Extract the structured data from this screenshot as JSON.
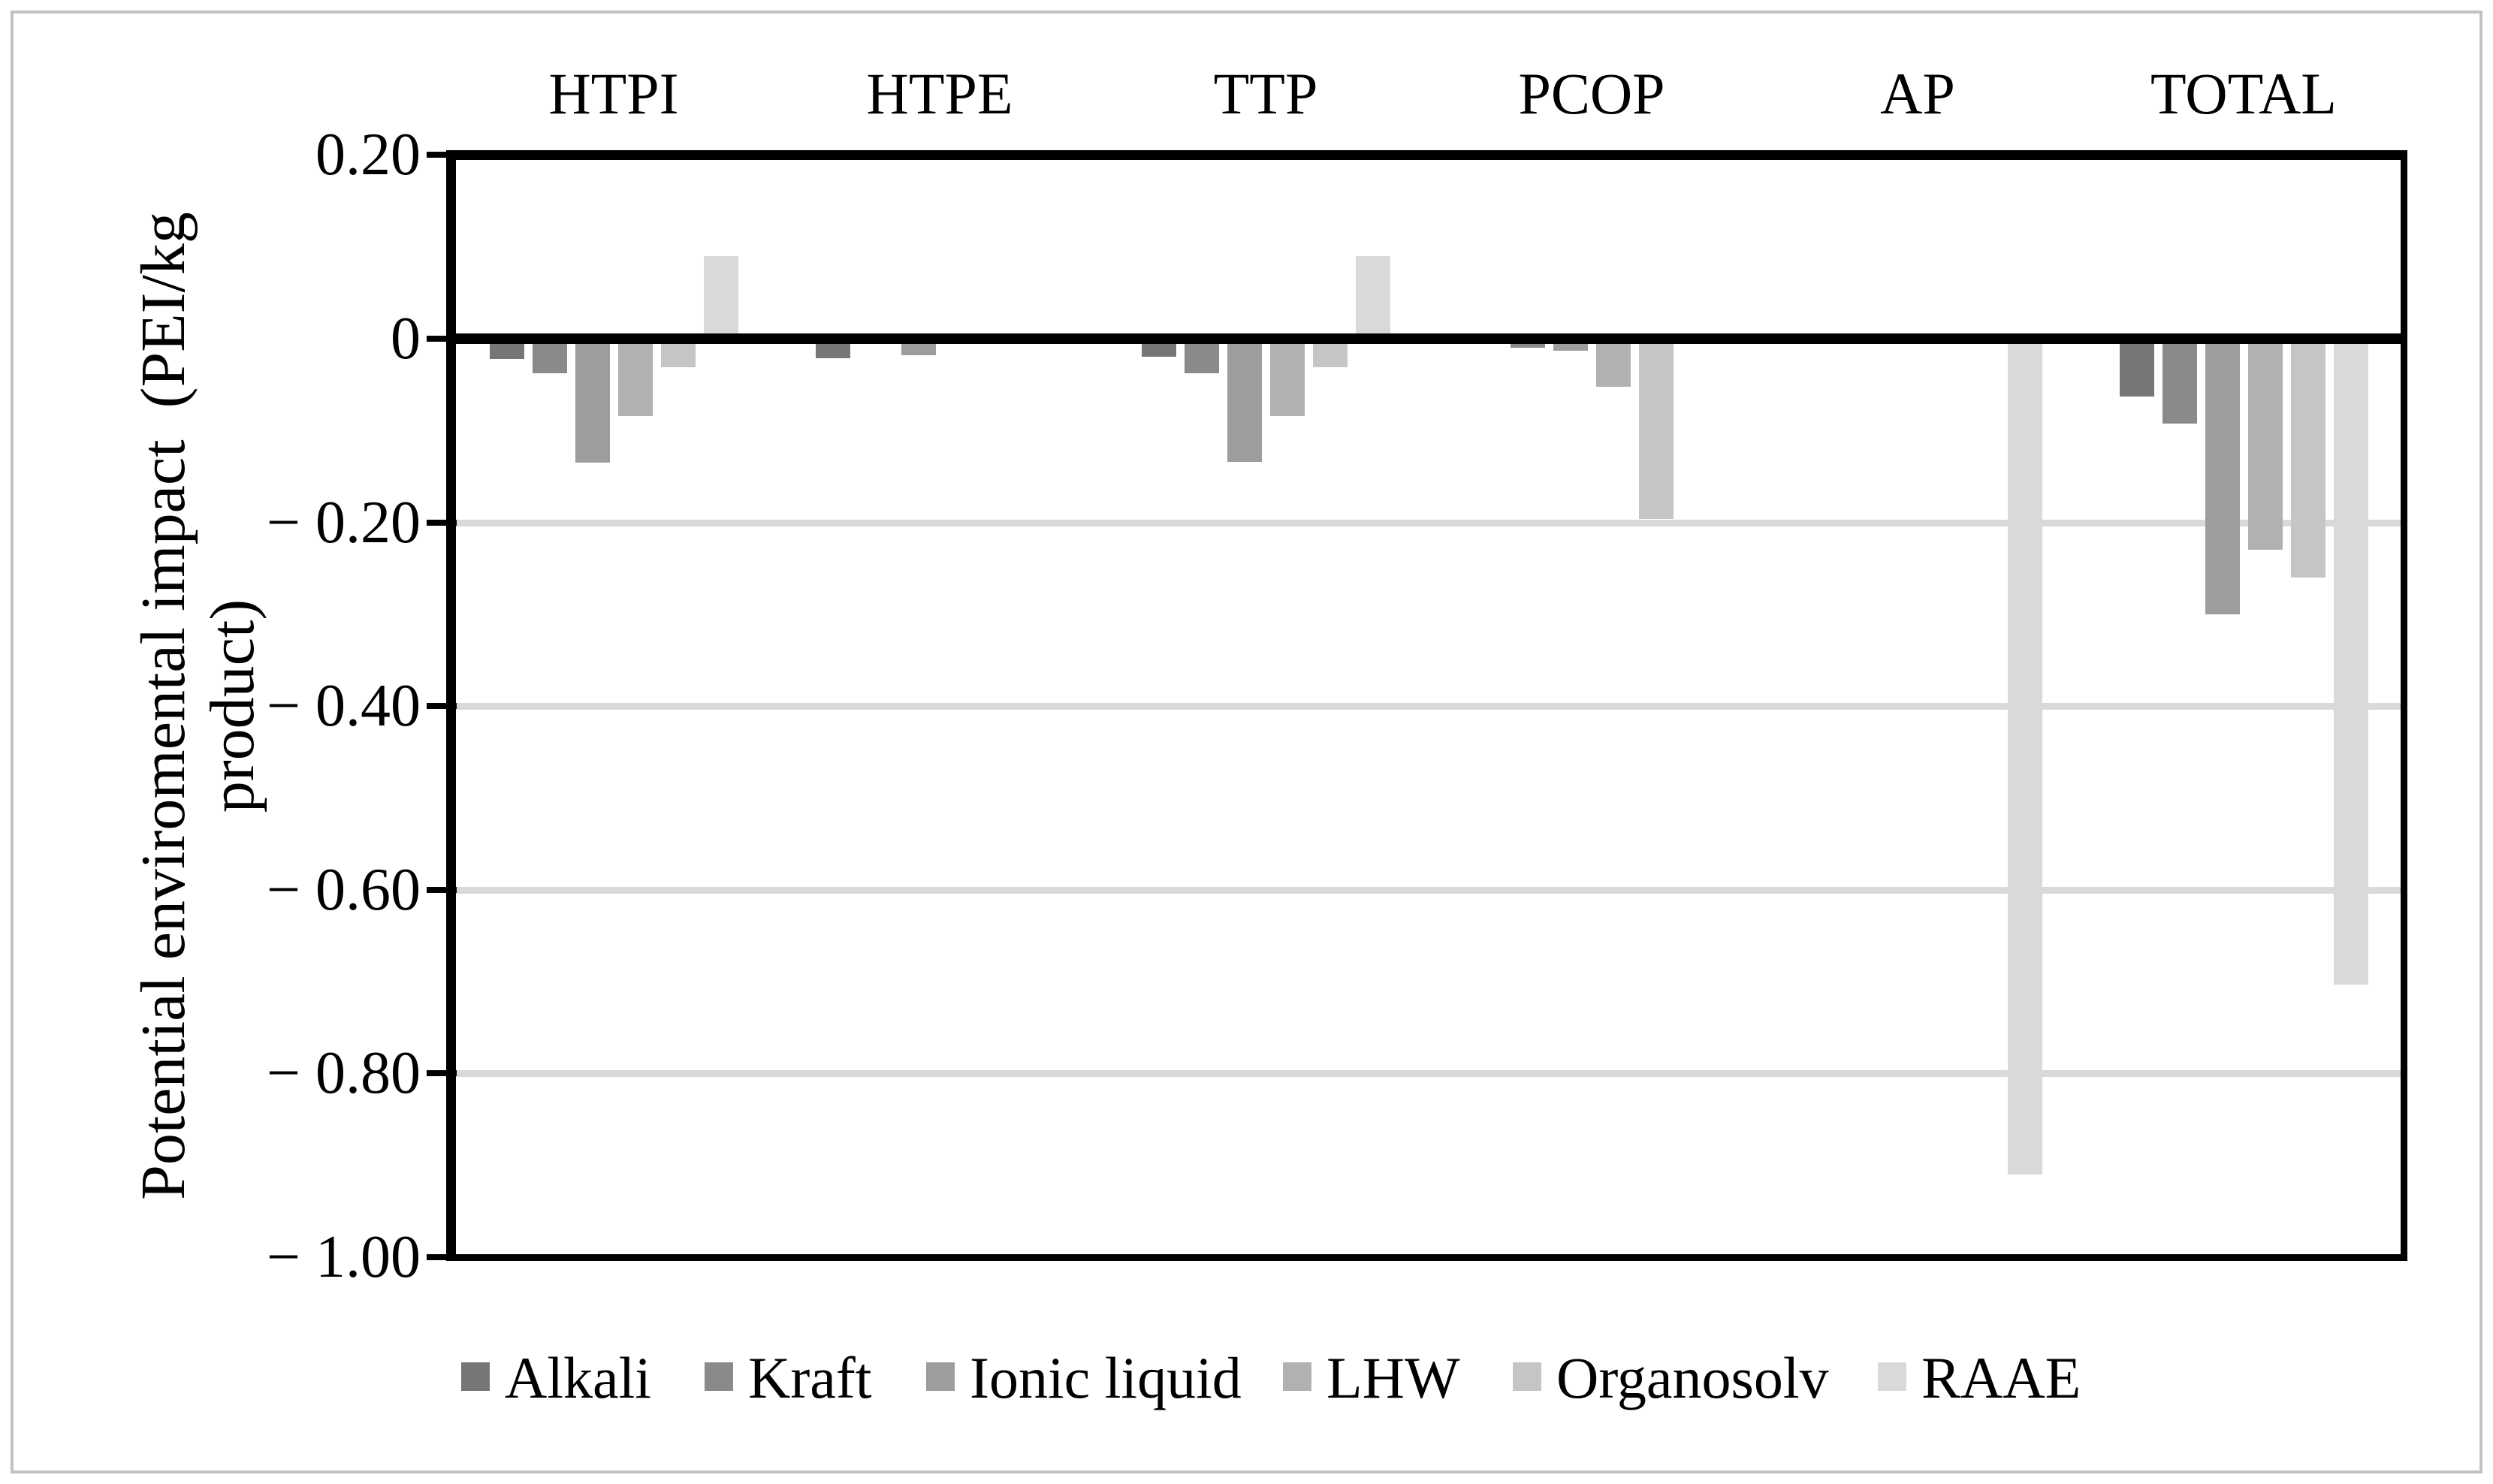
{
  "figure": {
    "frame_color": "#c2c2c2",
    "background": "#ffffff",
    "axis_color": "#000000"
  },
  "y_axis": {
    "title_line1": "Potential enviromental impact  (PEI/kg",
    "title_line2": "product)"
  },
  "chart_data": {
    "type": "bar",
    "title": "",
    "xlabel": "",
    "ylabel": "Potential enviromental impact (PEI/kg product)",
    "ylim": [
      -1.0,
      0.2
    ],
    "ytick_step": 0.2,
    "grid": "horizontal",
    "gridline_color": "#d9d9d9",
    "legend_position": "bottom",
    "categories": [
      "HTPI",
      "HTPE",
      "TTP",
      "PCOP",
      "AP",
      "TOTAL"
    ],
    "yticks": [
      {
        "label": "0.20",
        "value": 0.2
      },
      {
        "label": "0",
        "value": 0.0
      },
      {
        "label": "− 0.20",
        "value": -0.2
      },
      {
        "label": "− 0.40",
        "value": -0.4
      },
      {
        "label": "− 0.60",
        "value": -0.6
      },
      {
        "label": "− 0.80",
        "value": -0.8
      },
      {
        "label": "− 1.00",
        "value": -1.0
      }
    ],
    "series": [
      {
        "name": "Alkali",
        "color": "#767676",
        "values": [
          -0.022,
          -0.021,
          -0.02,
          0.0,
          0.0,
          -0.063
        ]
      },
      {
        "name": "Kraft",
        "color": "#8a8a8a",
        "values": [
          -0.038,
          -0.005,
          -0.038,
          -0.01,
          0.0,
          -0.092
        ]
      },
      {
        "name": "Ionic liquid",
        "color": "#9d9d9d",
        "values": [
          -0.135,
          -0.018,
          -0.134,
          -0.013,
          0.0,
          -0.3
        ]
      },
      {
        "name": "LHW",
        "color": "#b1b1b1",
        "values": [
          -0.084,
          -0.006,
          -0.084,
          -0.052,
          0.0,
          -0.23
        ]
      },
      {
        "name": "Organosolv",
        "color": "#c5c5c5",
        "values": [
          -0.031,
          -0.003,
          -0.031,
          -0.196,
          0.0,
          -0.26
        ]
      },
      {
        "name": "RAAE",
        "color": "#d9d9d9",
        "values": [
          0.09,
          0.0,
          0.09,
          0.0,
          -0.91,
          -0.703
        ]
      }
    ]
  }
}
